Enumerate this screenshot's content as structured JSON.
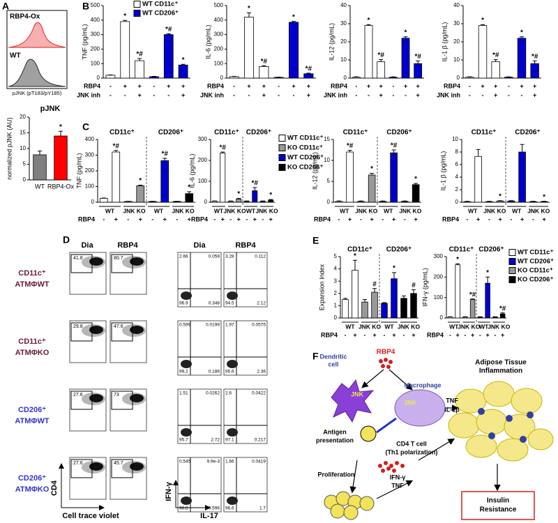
{
  "panel_labels": [
    "A",
    "B",
    "C",
    "D",
    "E",
    "F"
  ],
  "A": {
    "histogram_labels": [
      "RBP4-Ox",
      "WT"
    ],
    "xlabel": "pJNK (pT183/pY185)",
    "chart": {
      "type": "bar",
      "title": "pJNK",
      "ylabel": "normalized pJNK (AU)",
      "categories": [
        "WT",
        "RBP4-Ox"
      ],
      "values": [
        8,
        14
      ],
      "errors": [
        1.2,
        1.5
      ],
      "colors": [
        "#808080",
        "#ff0000"
      ],
      "annotations": [
        null,
        "*"
      ],
      "ylim": [
        0,
        20
      ],
      "yticks": [
        0,
        5,
        10,
        15,
        20
      ]
    }
  },
  "B": {
    "legend": [
      {
        "name": "WT CD11c⁺",
        "color": "#ffffff"
      },
      {
        "name": "WT CD206⁺",
        "color": "#0000cc"
      }
    ],
    "charts": [
      {
        "type": "bar",
        "ylabel": "TNF (pg/mL)",
        "ylim": [
          0,
          500
        ],
        "yticks": [
          0,
          100,
          200,
          300,
          400,
          500
        ],
        "values": [
          20,
          390,
          120,
          10,
          300,
          90
        ],
        "errors": [
          2,
          8,
          15,
          2,
          6,
          5
        ],
        "colors": [
          "#ffffff",
          "#ffffff",
          "#ffffff",
          "#0000cc",
          "#0000cc",
          "#0000cc"
        ],
        "annotations": [
          null,
          "*",
          "*#",
          null,
          "*#",
          "*"
        ],
        "conditions": [
          {
            "label": "RBP4",
            "signs": [
              "-",
              "+",
              "+",
              "-",
              "+",
              "+"
            ]
          },
          {
            "label": "JNK inh",
            "signs": [
              "-",
              "-",
              "+",
              "-",
              "-",
              "+"
            ]
          }
        ]
      },
      {
        "type": "bar",
        "ylabel": "IL-6 (pg/mL)",
        "ylim": [
          0,
          500
        ],
        "yticks": [
          0,
          100,
          200,
          300,
          400,
          500
        ],
        "values": [
          10,
          420,
          80,
          5,
          385,
          30
        ],
        "errors": [
          2,
          30,
          6,
          2,
          6,
          4
        ],
        "colors": [
          "#ffffff",
          "#ffffff",
          "#ffffff",
          "#0000cc",
          "#0000cc",
          "#0000cc"
        ],
        "annotations": [
          null,
          "*",
          "*#",
          null,
          "*",
          "*#"
        ],
        "conditions": [
          {
            "label": "RBP4",
            "signs": [
              "-",
              "+",
              "+",
              "-",
              "+",
              "+"
            ]
          },
          {
            "label": "JNK inh",
            "signs": [
              "-",
              "-",
              "+",
              "-",
              "-",
              "+"
            ]
          }
        ]
      },
      {
        "type": "bar",
        "ylabel": "IL-12 (pg/mL)",
        "ylim": [
          0,
          40
        ],
        "yticks": [
          0,
          10,
          20,
          30,
          40
        ],
        "values": [
          0.5,
          29,
          9,
          0.5,
          22,
          8
        ],
        "errors": [
          0.2,
          0.5,
          1.2,
          0.2,
          0.8,
          1.5
        ],
        "colors": [
          "#ffffff",
          "#ffffff",
          "#ffffff",
          "#0000cc",
          "#0000cc",
          "#0000cc"
        ],
        "annotations": [
          null,
          "*",
          "*#",
          null,
          "*",
          "*#"
        ],
        "conditions": [
          {
            "label": "RBP4",
            "signs": [
              "-",
              "+",
              "+",
              "-",
              "+",
              "+"
            ]
          },
          {
            "label": "JNK inh",
            "signs": [
              "-",
              "-",
              "+",
              "-",
              "-",
              "+"
            ]
          }
        ]
      },
      {
        "type": "bar",
        "ylabel": "IL-1 β (pg/mL)",
        "ylim": [
          0,
          40
        ],
        "yticks": [
          0,
          10,
          20,
          30,
          40
        ],
        "values": [
          0.5,
          29,
          9,
          0.5,
          22,
          8
        ],
        "errors": [
          0.2,
          0.5,
          1.2,
          0.2,
          0.8,
          1.5
        ],
        "colors": [
          "#ffffff",
          "#ffffff",
          "#ffffff",
          "#0000cc",
          "#0000cc",
          "#0000cc"
        ],
        "annotations": [
          null,
          "*",
          "*#",
          null,
          "*",
          "*#"
        ],
        "conditions": [
          {
            "label": "RBP4",
            "signs": [
              "-",
              "+",
              "+",
              "-",
              "+",
              "+"
            ]
          },
          {
            "label": "JNK inh",
            "signs": [
              "-",
              "-",
              "+",
              "-",
              "-",
              "+"
            ]
          }
        ]
      }
    ]
  },
  "C": {
    "legend": [
      {
        "name": "WT CD11c⁺",
        "color": "#ffffff"
      },
      {
        "name": "KO CD11c⁺",
        "color": "#999999"
      },
      {
        "name": "WT CD206⁺",
        "color": "#0000cc"
      },
      {
        "name": "KO CD206⁺",
        "color": "#000000"
      }
    ],
    "charts": [
      {
        "type": "bar",
        "ylabel": "TNF (pg/mL)",
        "ylim": [
          0,
          400
        ],
        "yticks": [
          0,
          100,
          200,
          300,
          400
        ],
        "values": [
          25,
          320,
          5,
          105,
          5,
          265,
          5,
          55
        ],
        "errors": [
          2,
          10,
          1,
          4,
          1,
          15,
          1,
          12
        ],
        "colors": [
          "#ffffff",
          "#ffffff",
          "#999999",
          "#999999",
          "#0000cc",
          "#0000cc",
          "#000000",
          "#000000"
        ],
        "annotations": [
          null,
          "*#",
          null,
          "*",
          null,
          "*#",
          null,
          "*"
        ],
        "headers": [
          "CD11c⁺",
          "CD206⁺"
        ],
        "groups": [
          "WT",
          "JNK KO",
          "WT",
          "JNK KO"
        ],
        "conditions": [
          {
            "label": "RBP4",
            "signs": [
              "-",
              "+",
              "-",
              "+",
              "-",
              "+",
              "-",
              "+"
            ]
          }
        ]
      },
      {
        "type": "bar",
        "ylabel": "IL-6 (pg/mL)",
        "ylim": [
          0,
          300
        ],
        "yticks": [
          0,
          100,
          200,
          300
        ],
        "values": [
          5,
          235,
          5,
          15,
          5,
          55,
          5,
          10
        ],
        "errors": [
          1,
          5,
          1,
          3,
          1,
          15,
          1,
          3
        ],
        "colors": [
          "#ffffff",
          "#ffffff",
          "#999999",
          "#999999",
          "#0000cc",
          "#0000cc",
          "#000000",
          "#000000"
        ],
        "annotations": [
          null,
          "*#",
          null,
          "*",
          null,
          "*#",
          null,
          "*"
        ],
        "headers": [
          "CD11c⁺",
          "CD206⁺"
        ],
        "groups": [
          "WT",
          "JNK KO",
          "WT",
          "JNK KO"
        ],
        "conditions": [
          {
            "label": "RBP4",
            "signs": [
              "-",
              "+",
              "-",
              "+",
              "-",
              "+",
              "-",
              "+"
            ]
          }
        ]
      },
      {
        "type": "bar",
        "ylabel": "IL-12 (pg/mL)",
        "ylim": [
          0,
          15
        ],
        "yticks": [
          0,
          5,
          10,
          15
        ],
        "values": [
          0.2,
          12,
          0.2,
          6.5,
          0.2,
          11.8,
          0.2,
          4.2
        ],
        "errors": [
          0.1,
          0.4,
          0.1,
          0.4,
          0.1,
          0.7,
          0.1,
          0.3
        ],
        "colors": [
          "#ffffff",
          "#ffffff",
          "#999999",
          "#999999",
          "#0000cc",
          "#0000cc",
          "#000000",
          "#000000"
        ],
        "annotations": [
          null,
          "*#",
          null,
          "*",
          null,
          "*#",
          null,
          "*"
        ],
        "headers": [
          "CD11c⁺",
          "CD206⁺"
        ],
        "groups": [
          "WT",
          "JNK KO",
          "WT",
          "JNK KO"
        ],
        "conditions": [
          {
            "label": "RBP4",
            "signs": [
              "-",
              "+",
              "-",
              "+",
              "-",
              "+",
              "-",
              "+"
            ]
          }
        ]
      },
      {
        "type": "bar",
        "ylabel": "IL-1 β (pg/mL)",
        "ylim": [
          0,
          10
        ],
        "yticks": [
          0,
          2,
          4,
          6,
          8,
          10
        ],
        "values": [
          0.1,
          7.3,
          0.1,
          0.2,
          0.2,
          8,
          0.1,
          0.1
        ],
        "errors": [
          0.05,
          1.1,
          0.05,
          0.05,
          0.05,
          1.2,
          0.05,
          0.05
        ],
        "colors": [
          "#ffffff",
          "#ffffff",
          "#999999",
          "#999999",
          "#0000cc",
          "#0000cc",
          "#000000",
          "#000000"
        ],
        "annotations": [
          null,
          null,
          null,
          "*",
          null,
          null,
          null,
          "*"
        ],
        "headers": [
          "CD11c⁺",
          "CD206⁺"
        ],
        "groups": [
          "WT",
          "JNK KO",
          "WT",
          "JNK KO"
        ],
        "conditions": [
          {
            "label": "RBP4",
            "signs": [
              "-",
              "+",
              "-",
              "+",
              "-",
              "+",
              "-",
              "+"
            ]
          }
        ]
      }
    ]
  },
  "D": {
    "columns": [
      "Dia",
      "RBP4",
      "Dia",
      "RBP4"
    ],
    "rows": [
      {
        "label": [
          "CD11c⁺",
          "ATMΦWT"
        ],
        "color": "#6b1a3a",
        "gates": [
          "41.8",
          "80.7"
        ],
        "quadrants": [
          [
            "2.66",
            "0.059",
            "96.9",
            "0.348"
          ],
          [
            "3.28",
            "0.112",
            "94.5",
            "2.12"
          ]
        ]
      },
      {
        "label": [
          "CD11c⁺",
          "ATMΦKO"
        ],
        "color": "#6b1a3a",
        "gates": [
          "29.8",
          "47.6"
        ],
        "quadrants": [
          [
            "0.599",
            "0.0199",
            "99.2",
            "0.186"
          ],
          [
            "1.97",
            "0.0575",
            "95.6",
            "2.36"
          ]
        ]
      },
      {
        "label": [
          "CD206⁺",
          "ATMΦWT"
        ],
        "color": "#3333cc",
        "gates": [
          "27.6",
          "73"
        ],
        "quadrants": [
          [
            "1.51",
            "0.0262",
            "95.7",
            "2.72"
          ],
          [
            "2.6",
            "0.0422",
            "97.1",
            "0.217"
          ]
        ]
      },
      {
        "label": [
          "CD206⁺",
          "ATMΦKO"
        ],
        "color": "#3333cc",
        "gates": [
          "27.6",
          "45.7"
        ],
        "quadrants": [
          [
            "0.545",
            "9.9e-3",
            "98.8",
            "0.596"
          ],
          [
            "1.66",
            "0.0419",
            "96.6",
            "1.7"
          ]
        ]
      }
    ],
    "axes": {
      "gate_y": "CD4",
      "gate_x": "Cell trace violet",
      "quad_y": "IFN-γ",
      "quad_x": "IL-17"
    }
  },
  "E": {
    "legend": [
      {
        "name": "WT CD11c⁺",
        "color": "#ffffff"
      },
      {
        "name": "WT CD206⁺",
        "color": "#0000cc"
      },
      {
        "name": "KO CD11c⁺",
        "color": "#999999"
      },
      {
        "name": "KO CD206⁺",
        "color": "#000000"
      }
    ],
    "charts": [
      {
        "type": "bar",
        "ylabel": "Expansion Index",
        "ylim": [
          0,
          5
        ],
        "yticks": [
          0,
          1,
          2,
          3,
          4,
          5
        ],
        "values": [
          1.5,
          3.9,
          1.3,
          2.1,
          1.2,
          3.2,
          1.6,
          2.0
        ],
        "errors": [
          0.1,
          0.8,
          0.2,
          0.3,
          0.05,
          0.5,
          0.2,
          0.3
        ],
        "colors": [
          "#ffffff",
          "#ffffff",
          "#999999",
          "#999999",
          "#0000cc",
          "#0000cc",
          "#000000",
          "#000000"
        ],
        "annotations": [
          null,
          "*",
          null,
          "#",
          null,
          "*",
          null,
          "#"
        ],
        "headers": [
          "CD11c⁺",
          "CD206⁺"
        ],
        "groups": [
          "WT",
          "JNK KO",
          "WT",
          "JNK KO"
        ],
        "conditions": [
          {
            "label": "RBP4",
            "signs": [
              "-",
              "+",
              "-",
              "+",
              "-",
              "+",
              "-",
              "+"
            ]
          }
        ]
      },
      {
        "type": "bar",
        "ylabel": "IFN-γ (pg/mL)",
        "ylim": [
          0,
          300
        ],
        "yticks": [
          0,
          100,
          200,
          300
        ],
        "values": [
          5,
          260,
          5,
          90,
          5,
          170,
          5,
          20
        ],
        "errors": [
          1,
          5,
          1,
          3,
          1,
          30,
          1,
          5
        ],
        "colors": [
          "#ffffff",
          "#ffffff",
          "#999999",
          "#999999",
          "#0000cc",
          "#0000cc",
          "#000000",
          "#000000"
        ],
        "annotations": [
          null,
          "*",
          null,
          "*#",
          null,
          "*",
          null,
          "*#"
        ],
        "headers": [
          "CD11c⁺",
          "CD206⁺"
        ],
        "groups": [
          "WT",
          "JNK KO",
          "WT",
          "JNK KO"
        ],
        "conditions": [
          {
            "label": "RBP4",
            "signs": [
              "-",
              "+",
              "-",
              "+",
              "-",
              "+",
              "-",
              "+"
            ]
          }
        ]
      }
    ]
  },
  "F": {
    "rbp4": "RBP4",
    "dendritic_cell": [
      "Dendritic",
      "cell"
    ],
    "jnk_dc": "JNK",
    "jnk_mac": "JNK",
    "macrophage": "Macrophage",
    "antigen_presentation": [
      "Antigen",
      "presentation"
    ],
    "mac_cytokines": [
      "TNF",
      "IL-1β"
    ],
    "adipose": [
      "Adipose Tissue",
      "Inflammation"
    ],
    "t_cell": [
      "CD4 T cell",
      "(Th1 polarization)"
    ],
    "proliferation": "Proliferation",
    "t_cytokines": [
      "IFN-γ",
      "TNF"
    ],
    "outcome": [
      "Insulin",
      "Resistance"
    ]
  }
}
